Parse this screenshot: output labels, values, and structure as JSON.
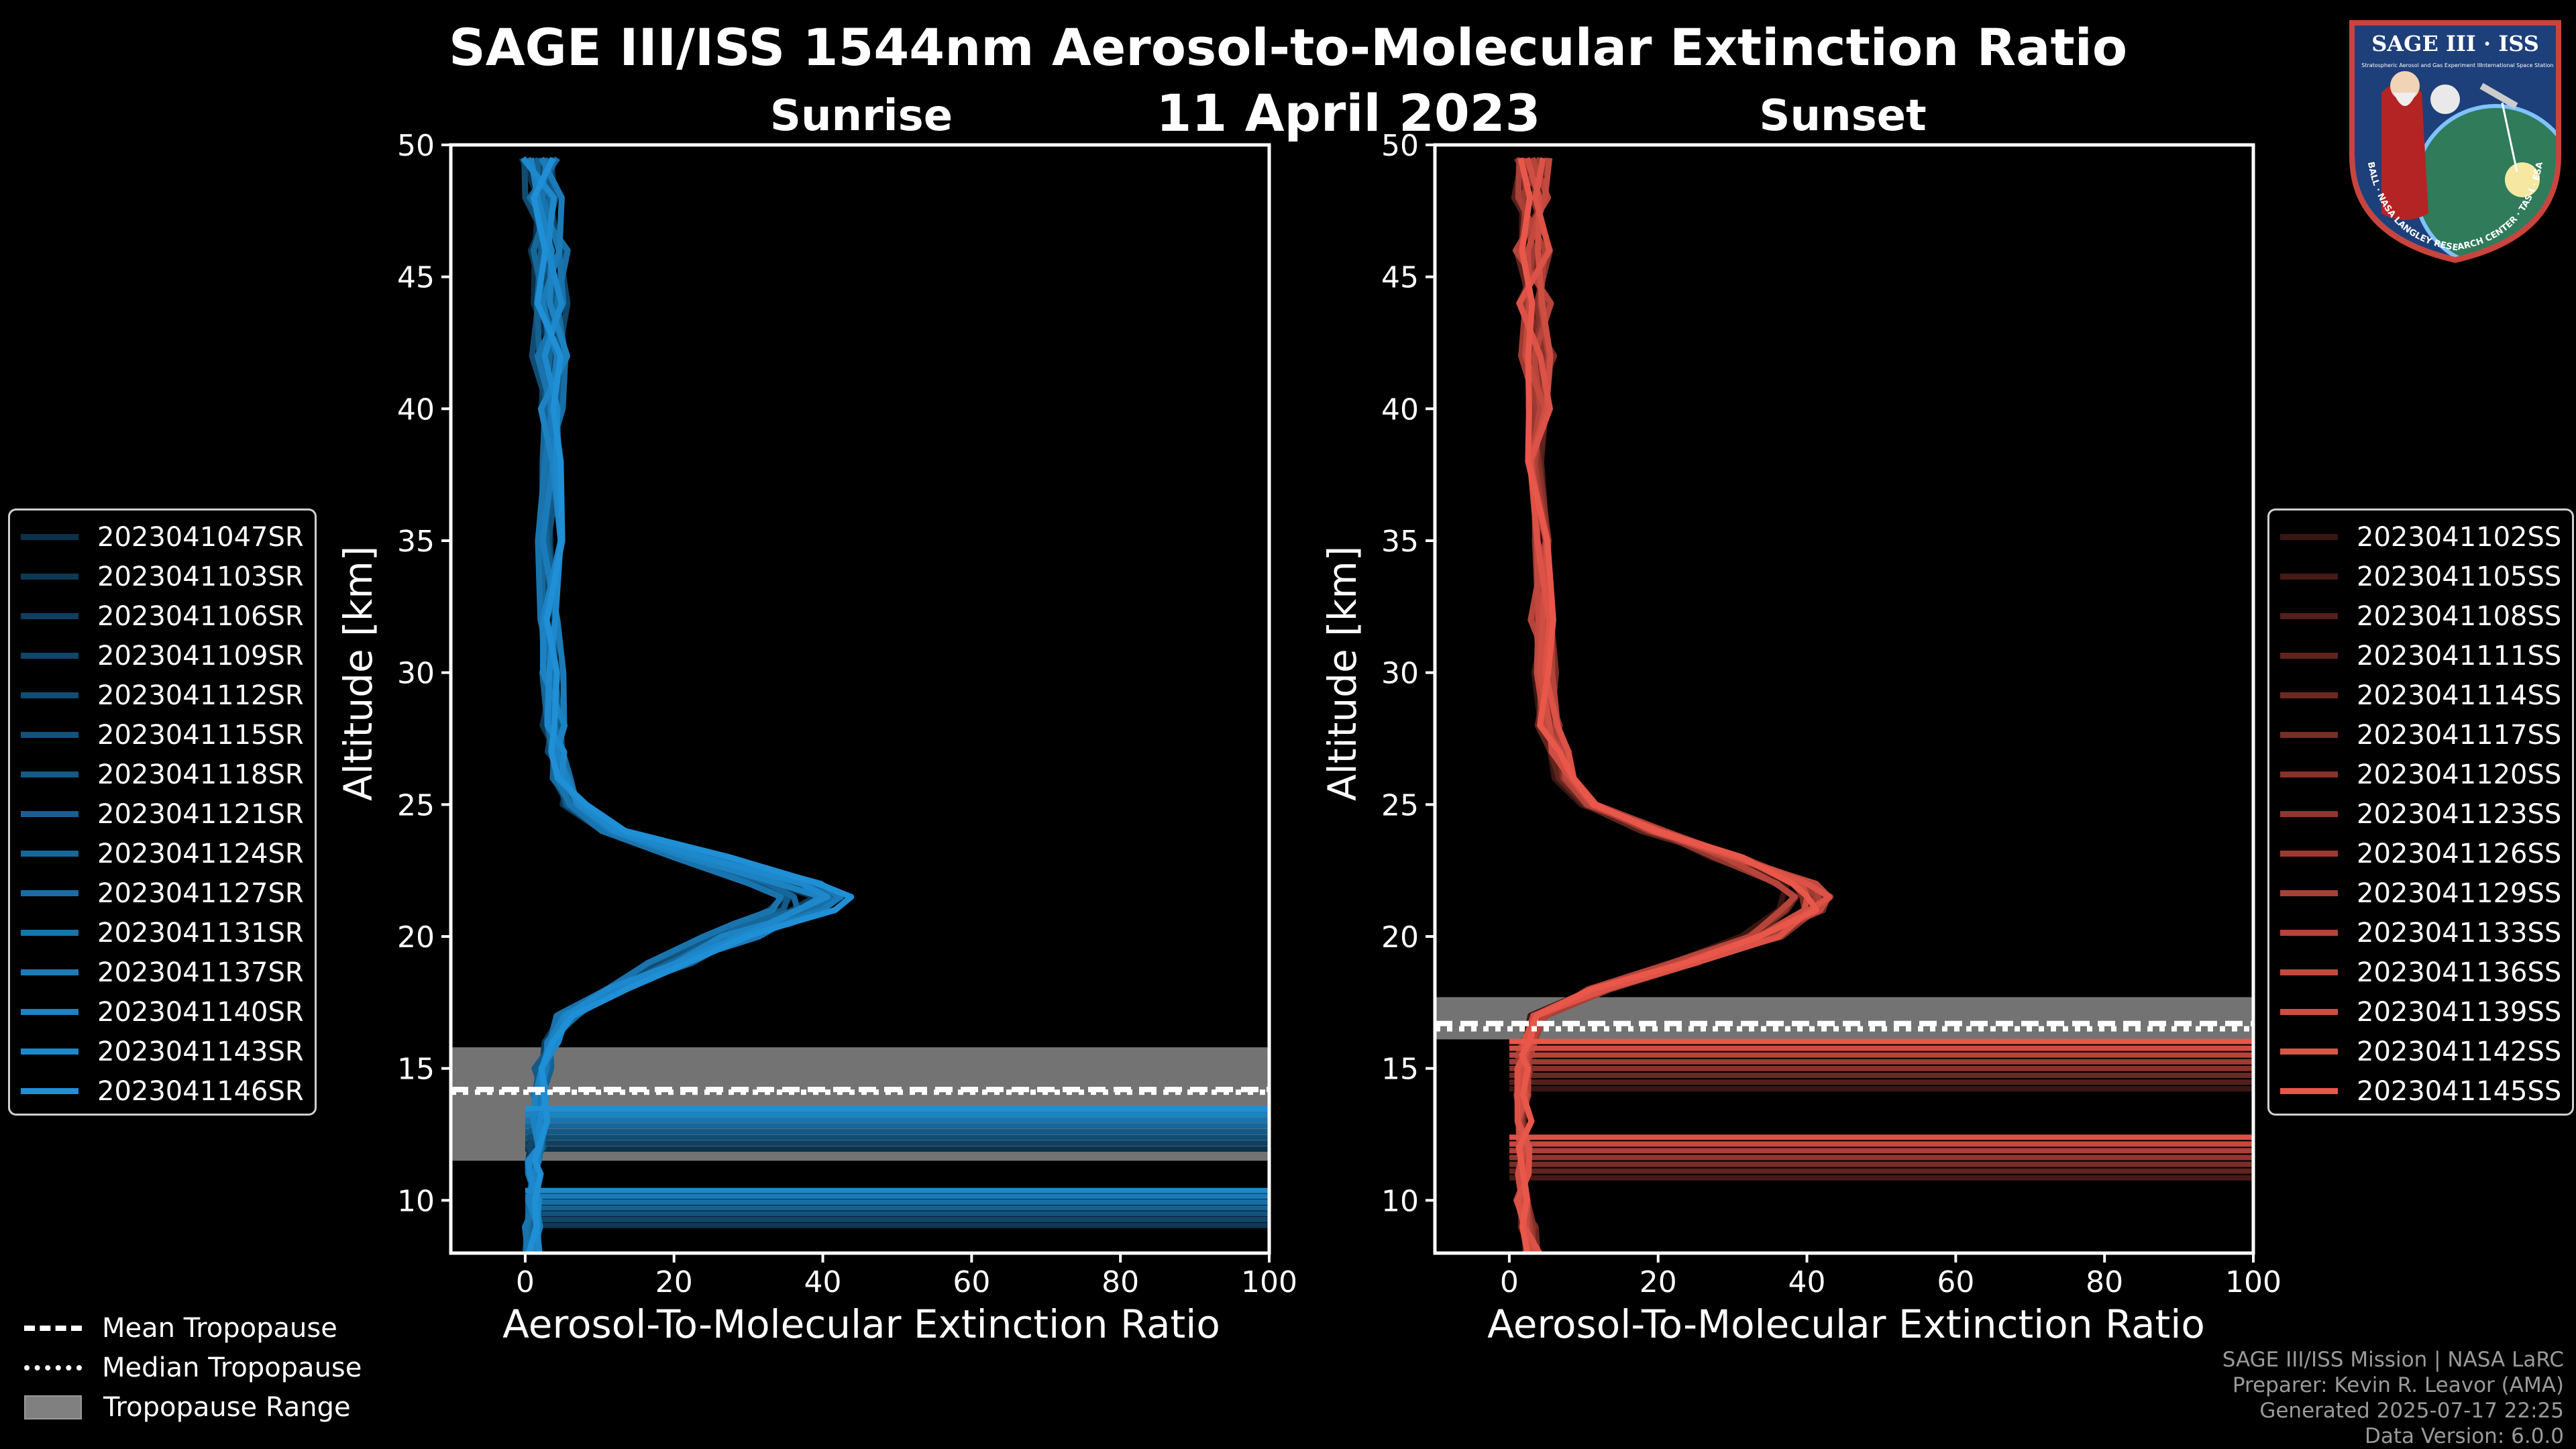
{
  "header": {
    "title": "SAGE III/ISS 1544nm Aerosol-to-Molecular Extinction Ratio",
    "date": "11 April 2023",
    "sunrise_label": "Sunrise",
    "sunset_label": "Sunset"
  },
  "logo": {
    "text": "SAGE III · ISS",
    "ring_text": "BALL · NASA LANGLEY RESEARCH CENTER · TAS-I · ESA",
    "subtext": "Stratospheric Aerosol and Gas Experiment III",
    "subtext2": "International Space Station"
  },
  "legend_tropopause": {
    "mean": "Mean Tropopause",
    "median": "Median Tropopause",
    "range": "Tropopause Range"
  },
  "footer": {
    "line1": "SAGE III/ISS Mission | NASA LaRC",
    "line2": "Preparer: Kevin R. Leavor (AMA)",
    "line3": "Generated 2025-07-17 22:25",
    "line4": "Data Version: 6.0.0"
  },
  "colors": {
    "sunrise": "#1f8fd6",
    "sunset": "#e8574a",
    "axes": "#ffffff",
    "tropopause_range": "#808080"
  },
  "chart_data": [
    {
      "type": "line",
      "title": "Sunrise",
      "xlabel": "Aerosol-To-Molecular Extinction Ratio",
      "ylabel": "Altitude [km]",
      "xlim": [
        -10,
        100
      ],
      "ylim": [
        8,
        50
      ],
      "xticks": [
        0,
        20,
        40,
        60,
        80,
        100
      ],
      "yticks": [
        10,
        15,
        20,
        25,
        30,
        35,
        40,
        45,
        50
      ],
      "tropopause": {
        "mean": 14.2,
        "median": 14.1,
        "range": [
          11.5,
          15.8
        ]
      },
      "profile_altitudes": [
        8,
        9,
        10,
        11,
        11.5,
        12,
        13,
        14,
        15,
        16,
        17,
        18,
        19,
        20,
        20.5,
        21,
        21.5,
        22,
        23,
        24,
        25,
        26,
        27,
        28,
        30,
        32,
        35,
        38,
        40,
        42,
        44,
        46,
        48,
        49.5
      ],
      "profile_ratio": [
        1,
        1,
        1.5,
        1.5,
        1,
        1.5,
        1.8,
        2,
        2.5,
        3.5,
        6,
        12,
        20,
        28,
        33,
        38,
        40,
        36,
        24,
        12,
        7,
        5,
        4.5,
        4,
        3.5,
        3.5,
        3.5,
        3.5,
        3.5,
        3.5,
        3.5,
        3.2,
        2.5,
        2
      ],
      "series": [
        {
          "name": "2023041047SR",
          "values_scale": 0.92
        },
        {
          "name": "2023041103SR",
          "values_scale": 0.95
        },
        {
          "name": "2023041106SR",
          "values_scale": 0.97
        },
        {
          "name": "2023041109SR",
          "values_scale": 1.0
        },
        {
          "name": "2023041112SR",
          "values_scale": 0.9
        },
        {
          "name": "2023041115SR",
          "values_scale": 1.04
        },
        {
          "name": "2023041118SR",
          "values_scale": 0.88
        },
        {
          "name": "2023041121SR",
          "values_scale": 1.06
        },
        {
          "name": "2023041124SR",
          "values_scale": 0.94
        },
        {
          "name": "2023041127SR",
          "values_scale": 1.02
        },
        {
          "name": "2023041131SR",
          "values_scale": 0.86
        },
        {
          "name": "2023041137SR",
          "values_scale": 1.08
        },
        {
          "name": "2023041140SR",
          "values_scale": 0.96
        },
        {
          "name": "2023041143SR",
          "values_scale": 1.0
        },
        {
          "name": "2023041146SR",
          "values_scale": 1.1
        }
      ]
    },
    {
      "type": "line",
      "title": "Sunset",
      "xlabel": "Aerosol-To-Molecular Extinction Ratio",
      "ylabel": "Altitude [km]",
      "xlim": [
        -10,
        100
      ],
      "ylim": [
        8,
        50
      ],
      "xticks": [
        0,
        20,
        40,
        60,
        80,
        100
      ],
      "yticks": [
        10,
        15,
        20,
        25,
        30,
        35,
        40,
        45,
        50
      ],
      "tropopause": {
        "mean": 16.7,
        "median": 16.5,
        "range": [
          16.1,
          17.7
        ]
      },
      "profile_altitudes": [
        8,
        9,
        10,
        11,
        12,
        13,
        14,
        15,
        15.5,
        16,
        17,
        18,
        19,
        20,
        21,
        21.5,
        22,
        23,
        24,
        25,
        26,
        27,
        28,
        30,
        32,
        35,
        38,
        40,
        42,
        44,
        46,
        48,
        49.5
      ],
      "profile_ratio": [
        3,
        2.5,
        2,
        2,
        2,
        2,
        2,
        2,
        2,
        2.5,
        4,
        12,
        24,
        34,
        40,
        41,
        39,
        30,
        20,
        12,
        8,
        6.5,
        5.5,
        5,
        4.5,
        4,
        4,
        4,
        4,
        3.5,
        3,
        3,
        3
      ],
      "series": [
        {
          "name": "2023041102SS",
          "values_scale": 0.93
        },
        {
          "name": "2023041105SS",
          "values_scale": 0.97
        },
        {
          "name": "2023041108SS",
          "values_scale": 1.0
        },
        {
          "name": "2023041111SS",
          "values_scale": 0.95
        },
        {
          "name": "2023041114SS",
          "values_scale": 1.02
        },
        {
          "name": "2023041117SS",
          "values_scale": 0.98
        },
        {
          "name": "2023041120SS",
          "values_scale": 1.04
        },
        {
          "name": "2023041123SS",
          "values_scale": 0.96
        },
        {
          "name": "2023041126SS",
          "values_scale": 1.0
        },
        {
          "name": "2023041129SS",
          "values_scale": 1.05
        },
        {
          "name": "2023041133SS",
          "values_scale": 0.94
        },
        {
          "name": "2023041136SS",
          "values_scale": 1.02
        },
        {
          "name": "2023041139SS",
          "values_scale": 0.99
        },
        {
          "name": "2023041142SS",
          "values_scale": 1.03
        },
        {
          "name": "2023041145SS",
          "values_scale": 1.0
        }
      ]
    }
  ]
}
